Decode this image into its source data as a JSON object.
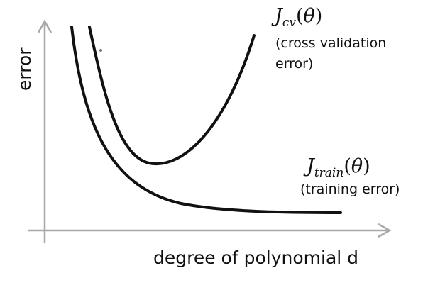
{
  "labels": {
    "y_axis": "error",
    "x_axis": "degree of polynomial d"
  },
  "curves": {
    "cv": {
      "symbol_main": "J",
      "symbol_sub": "cv",
      "symbol_paren_open": "(",
      "symbol_theta": "θ",
      "symbol_paren_close": ")",
      "note_line1": "(cross validation",
      "note_line2": "error)"
    },
    "train": {
      "symbol_main": "J",
      "symbol_sub": "train",
      "symbol_paren_open": "(",
      "symbol_theta": "θ",
      "symbol_paren_close": ")",
      "note_line1": "(training error)"
    }
  }
}
